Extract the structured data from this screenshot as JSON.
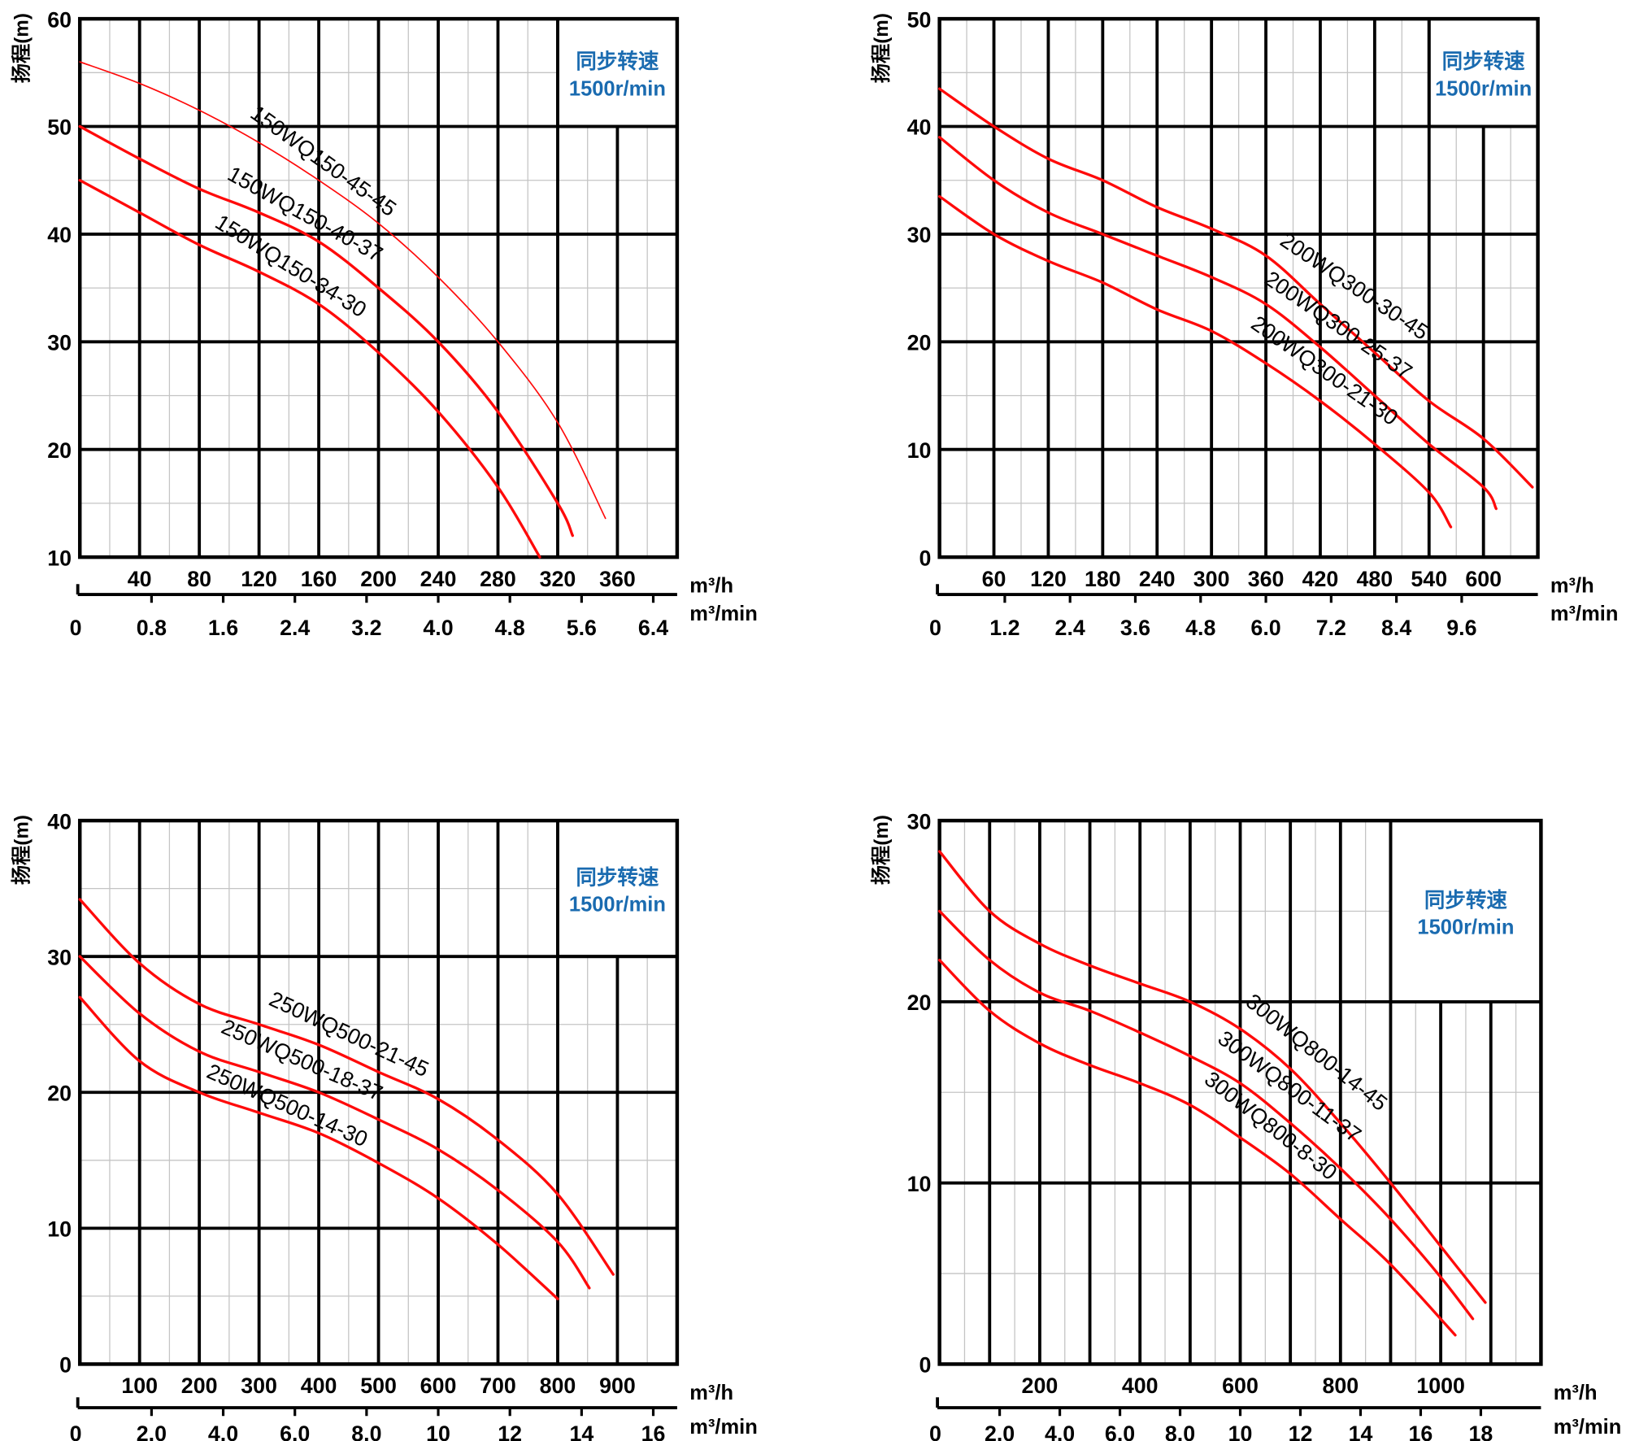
{
  "chart_data": [
    {
      "type": "line",
      "ylabel": "扬程(m)",
      "xunit": "m³/h",
      "x2unit": "m³/min",
      "note": [
        "同步转速",
        "1500r/min"
      ],
      "xlim": [
        0,
        400
      ],
      "ylim": [
        10,
        60
      ],
      "xticks": [
        40,
        80,
        120,
        160,
        200,
        240,
        280,
        320,
        360
      ],
      "x2ticks": [
        "0",
        "0.8",
        "1.6",
        "2.4",
        "3.2",
        "4.0",
        "4.8",
        "5.6",
        "6.4"
      ],
      "yticks": [
        10,
        20,
        30,
        40,
        50,
        60
      ],
      "grid": true,
      "series": [
        {
          "name": "150WQ150-45-45",
          "x": [
            0,
            40,
            80,
            120,
            160,
            200,
            240,
            280,
            320,
            352
          ],
          "y": [
            56,
            54,
            51.5,
            48.5,
            45,
            41,
            36,
            30,
            22.5,
            13.6
          ]
        },
        {
          "name": "150WQ150-40-37",
          "x": [
            0,
            40,
            80,
            120,
            160,
            200,
            240,
            280,
            320,
            330
          ],
          "y": [
            50,
            47,
            44.2,
            42,
            39.3,
            35,
            30,
            23.5,
            15,
            12
          ]
        },
        {
          "name": "150WQ150-34-30",
          "x": [
            0,
            40,
            80,
            120,
            160,
            200,
            240,
            280,
            308
          ],
          "y": [
            45,
            42,
            39,
            36.5,
            33.5,
            29,
            23.5,
            16.5,
            10
          ]
        }
      ]
    },
    {
      "type": "line",
      "ylabel": "扬程(m)",
      "xunit": "m³/h",
      "x2unit": "m³/min",
      "note": [
        "同步转速",
        "1500r/min"
      ],
      "xlim": [
        0,
        660
      ],
      "ylim": [
        0,
        50
      ],
      "xticks": [
        60,
        120,
        180,
        240,
        300,
        360,
        420,
        480,
        540,
        600
      ],
      "x2ticks": [
        "0",
        "1.2",
        "2.4",
        "3.6",
        "4.8",
        "6.0",
        "7.2",
        "8.4",
        "9.6"
      ],
      "yticks": [
        0,
        10,
        20,
        30,
        40,
        50
      ],
      "grid": true,
      "series": [
        {
          "name": "200WQ300-30-45",
          "x": [
            0,
            60,
            120,
            180,
            240,
            300,
            360,
            420,
            480,
            540,
            600,
            654
          ],
          "y": [
            43.5,
            40,
            37,
            35,
            32.5,
            30.5,
            28,
            23.5,
            19,
            14.5,
            11,
            6.5
          ]
        },
        {
          "name": "200WQ300-25-37",
          "x": [
            0,
            60,
            120,
            180,
            240,
            300,
            360,
            420,
            480,
            540,
            600,
            614
          ],
          "y": [
            39,
            35,
            32,
            30,
            28,
            26,
            23.5,
            19.5,
            15,
            10.5,
            6.5,
            4.5
          ]
        },
        {
          "name": "200WQ300-21-30",
          "x": [
            0,
            60,
            120,
            180,
            240,
            300,
            360,
            420,
            480,
            540,
            564
          ],
          "y": [
            33.5,
            30,
            27.5,
            25.5,
            23,
            21,
            18,
            14.5,
            10.5,
            6,
            2.8
          ]
        }
      ]
    },
    {
      "type": "line",
      "ylabel": "扬程(m)",
      "xunit": "m³/h",
      "x2unit": "m³/min",
      "note": [
        "同步转速",
        "1500r/min"
      ],
      "xlim": [
        0,
        1000
      ],
      "ylim": [
        0,
        40
      ],
      "xticks": [
        100,
        200,
        300,
        400,
        500,
        600,
        700,
        800,
        900
      ],
      "x2ticks": [
        "0",
        "2.0",
        "4.0",
        "6.0",
        "8.0",
        "10",
        "12",
        "14",
        "16"
      ],
      "yticks": [
        0,
        10,
        20,
        30,
        40
      ],
      "grid": true,
      "series": [
        {
          "name": "250WQ500-21-45",
          "x": [
            0,
            100,
            200,
            300,
            400,
            500,
            600,
            700,
            800,
            893
          ],
          "y": [
            34.2,
            29.5,
            26.5,
            25,
            23.5,
            21.5,
            19.5,
            16.5,
            12.5,
            6.6
          ]
        },
        {
          "name": "250WQ500-18-37",
          "x": [
            0,
            100,
            200,
            300,
            400,
            500,
            600,
            700,
            800,
            853
          ],
          "y": [
            30,
            25.8,
            23,
            21.5,
            20,
            18,
            15.8,
            12.8,
            9,
            5.6
          ]
        },
        {
          "name": "250WQ500-14-30",
          "x": [
            0,
            100,
            200,
            300,
            400,
            500,
            600,
            700,
            800
          ],
          "y": [
            27,
            22.3,
            20,
            18.5,
            17,
            14.8,
            12.2,
            8.8,
            4.8
          ]
        }
      ]
    },
    {
      "type": "line",
      "ylabel": "扬程(m)",
      "xunit": "m³/h",
      "x2unit": "m³/min",
      "note": [
        "同步转速",
        "1500r/min"
      ],
      "xlim": [
        0,
        1200
      ],
      "ylim": [
        0,
        30
      ],
      "xticks": [
        200,
        400,
        600,
        800,
        1000
      ],
      "x2ticks": [
        "0",
        "2.0",
        "4.0",
        "6.0",
        "8.0",
        "10",
        "12",
        "14",
        "16",
        "18"
      ],
      "yticks": [
        0,
        10,
        20,
        30
      ],
      "grid": true,
      "series": [
        {
          "name": "300WQ800-14-45",
          "x": [
            0,
            100,
            200,
            300,
            400,
            500,
            600,
            700,
            800,
            900,
            1000,
            1089
          ],
          "y": [
            28.3,
            25,
            23.2,
            22,
            21,
            20,
            18.5,
            16.3,
            13.3,
            10,
            6.5,
            3.4
          ]
        },
        {
          "name": "300WQ800-11-37",
          "x": [
            0,
            100,
            200,
            300,
            400,
            500,
            600,
            700,
            800,
            900,
            1000,
            1064
          ],
          "y": [
            25,
            22.3,
            20.5,
            19.5,
            18.3,
            17,
            15.5,
            13.3,
            10.8,
            8,
            4.8,
            2.5
          ]
        },
        {
          "name": "300WQ800-8-30",
          "x": [
            0,
            100,
            200,
            300,
            400,
            500,
            600,
            700,
            800,
            900,
            1029
          ],
          "y": [
            22.3,
            19.5,
            17.7,
            16.5,
            15.5,
            14.3,
            12.5,
            10.5,
            8,
            5.5,
            1.6
          ]
        }
      ]
    }
  ]
}
